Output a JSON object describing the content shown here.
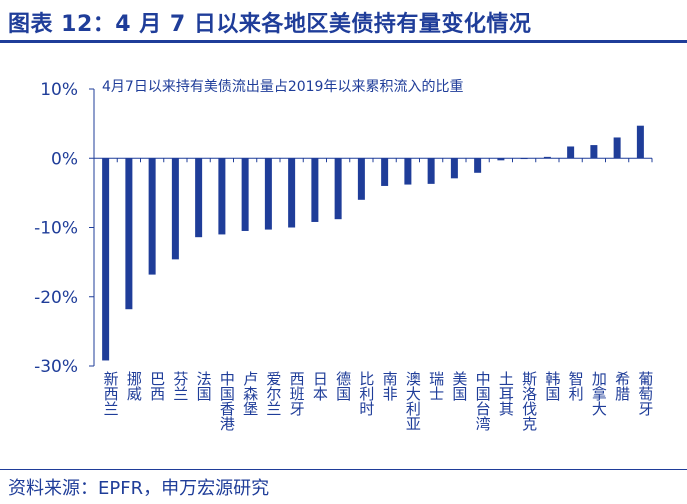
{
  "header": {
    "title": "图表 12：4 月 7 日以来各地区美债持有量变化情况"
  },
  "footer": {
    "source": "资料来源：EPFR，申万宏源研究"
  },
  "colors": {
    "bar": "#1f3d99",
    "text": "#1f3d99",
    "axis": "#1f3d99"
  },
  "chart_data": {
    "type": "bar",
    "title": "",
    "annotation": "4月7日以来持有美债流出量占2019年以来累积流入的比重",
    "xlabel": "",
    "ylabel": "",
    "ylim": [
      -30,
      10
    ],
    "yticks": [
      10,
      0,
      -10,
      -20,
      -30
    ],
    "ytick_labels": [
      "10%",
      "0%",
      "-10%",
      "-20%",
      "-30%"
    ],
    "grid": false,
    "categories": [
      "新西兰",
      "挪威",
      "巴西",
      "芬兰",
      "法国",
      "中国香港",
      "卢森堡",
      "爱尔兰",
      "西班牙",
      "日本",
      "德国",
      "比利时",
      "南非",
      "澳大利亚",
      "瑞士",
      "美国",
      "中国台湾",
      "土耳其",
      "斯洛伐克",
      "韩国",
      "智利",
      "加拿大",
      "希腊",
      "葡萄牙"
    ],
    "values": [
      -29.2,
      -21.8,
      -16.8,
      -14.6,
      -11.4,
      -11.0,
      -10.5,
      -10.3,
      -10.0,
      -9.2,
      -8.8,
      -6.0,
      -4.0,
      -3.8,
      -3.7,
      -2.9,
      -2.1,
      -0.3,
      -0.1,
      0.2,
      1.7,
      1.9,
      3.0,
      4.7
    ]
  }
}
